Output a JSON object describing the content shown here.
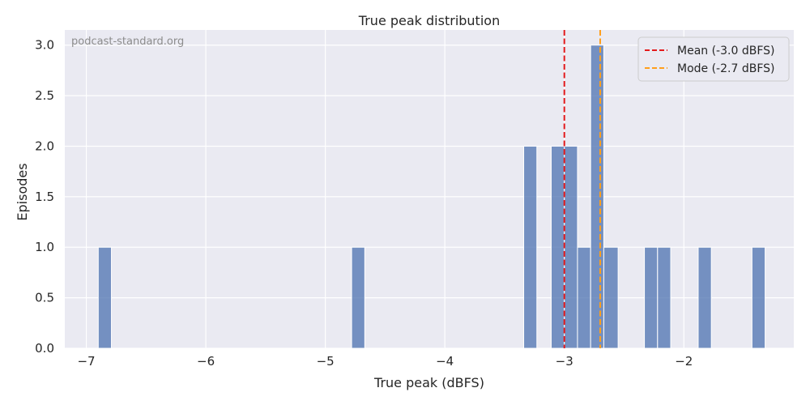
{
  "chart_data": {
    "type": "bar",
    "title": "True peak distribution",
    "xlabel": "True peak (dBFS)",
    "ylabel": "Episodes",
    "watermark": "podcast-standard.org",
    "xlim": [
      -7.18,
      -1.08
    ],
    "ylim": [
      0,
      3.15
    ],
    "xticks": [
      -7,
      -6,
      -5,
      -4,
      -3,
      -2
    ],
    "xtick_labels": [
      "−7",
      "−6",
      "−5",
      "−4",
      "−3",
      "−2"
    ],
    "yticks": [
      0.0,
      0.5,
      1.0,
      1.5,
      2.0,
      2.5,
      3.0
    ],
    "ytick_labels": [
      "0.0",
      "0.5",
      "1.0",
      "1.5",
      "2.0",
      "2.5",
      "3.0"
    ],
    "grid": true,
    "bin_width": 0.1125,
    "bar_color": "#4c72b0",
    "bins": [
      {
        "x0": -6.9,
        "x1": -6.79,
        "count": 1
      },
      {
        "x0": -4.78,
        "x1": -4.67,
        "count": 1
      },
      {
        "x0": -3.34,
        "x1": -3.23,
        "count": 2
      },
      {
        "x0": -3.11,
        "x1": -3.0,
        "count": 2
      },
      {
        "x0": -3.0,
        "x1": -2.89,
        "count": 2
      },
      {
        "x0": -2.89,
        "x1": -2.78,
        "count": 1
      },
      {
        "x0": -2.78,
        "x1": -2.67,
        "count": 3
      },
      {
        "x0": -2.67,
        "x1": -2.55,
        "count": 1
      },
      {
        "x0": -2.33,
        "x1": -2.22,
        "count": 1
      },
      {
        "x0": -2.22,
        "x1": -2.11,
        "count": 1
      },
      {
        "x0": -1.88,
        "x1": -1.77,
        "count": 1
      },
      {
        "x0": -1.43,
        "x1": -1.32,
        "count": 1
      }
    ],
    "reference_lines": [
      {
        "name": "Mean (-3.0 dBFS)",
        "x": -3.0,
        "color": "#e31a1c"
      },
      {
        "name": "Mode (-2.7 dBFS)",
        "x": -2.7,
        "color": "#ff9f1c"
      }
    ],
    "legend": {
      "position": "top-right",
      "entries": [
        {
          "label": "Mean (-3.0 dBFS)",
          "color": "#e31a1c"
        },
        {
          "label": "Mode (-2.7 dBFS)",
          "color": "#ff9f1c"
        }
      ]
    },
    "colors": {
      "plot_background": "#eaeaf2",
      "grid": "#ffffff"
    }
  }
}
